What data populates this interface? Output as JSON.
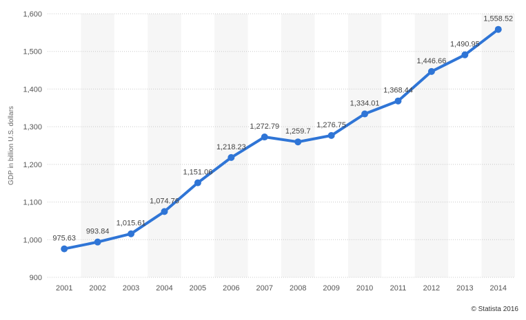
{
  "chart_data": {
    "type": "line",
    "title": "",
    "xlabel": "",
    "ylabel": "GDP in billion U.S. dollars",
    "categories": [
      "2001",
      "2002",
      "2003",
      "2004",
      "2005",
      "2006",
      "2007",
      "2008",
      "2009",
      "2010",
      "2011",
      "2012",
      "2013",
      "2014"
    ],
    "values": [
      975.63,
      993.84,
      1015.61,
      1074.76,
      1151.06,
      1218.23,
      1272.79,
      1259.7,
      1276.75,
      1334.01,
      1368.44,
      1446.66,
      1490.95,
      1558.52
    ],
    "data_labels": [
      "975.63",
      "993.84",
      "1,015.61",
      "1,074.76",
      "1,151.06",
      "1,218.23",
      "1,272.79",
      "1,259.7",
      "1,276.75",
      "1,334.01",
      "1,368.44",
      "1,446.66",
      "1,490.95",
      "1,558.52"
    ],
    "ylim": [
      900,
      1600
    ],
    "yticks": [
      900,
      1000,
      1100,
      1200,
      1300,
      1400,
      1500,
      1600
    ],
    "ytick_labels": [
      "900",
      "1,000",
      "1,100",
      "1,200",
      "1,300",
      "1,400",
      "1,500",
      "1,600"
    ],
    "grid": true,
    "line_color": "#2f75d6",
    "band_color": "#f6f6f6",
    "grid_color": "#c8c8c8"
  },
  "credit": "© Statista 2016"
}
